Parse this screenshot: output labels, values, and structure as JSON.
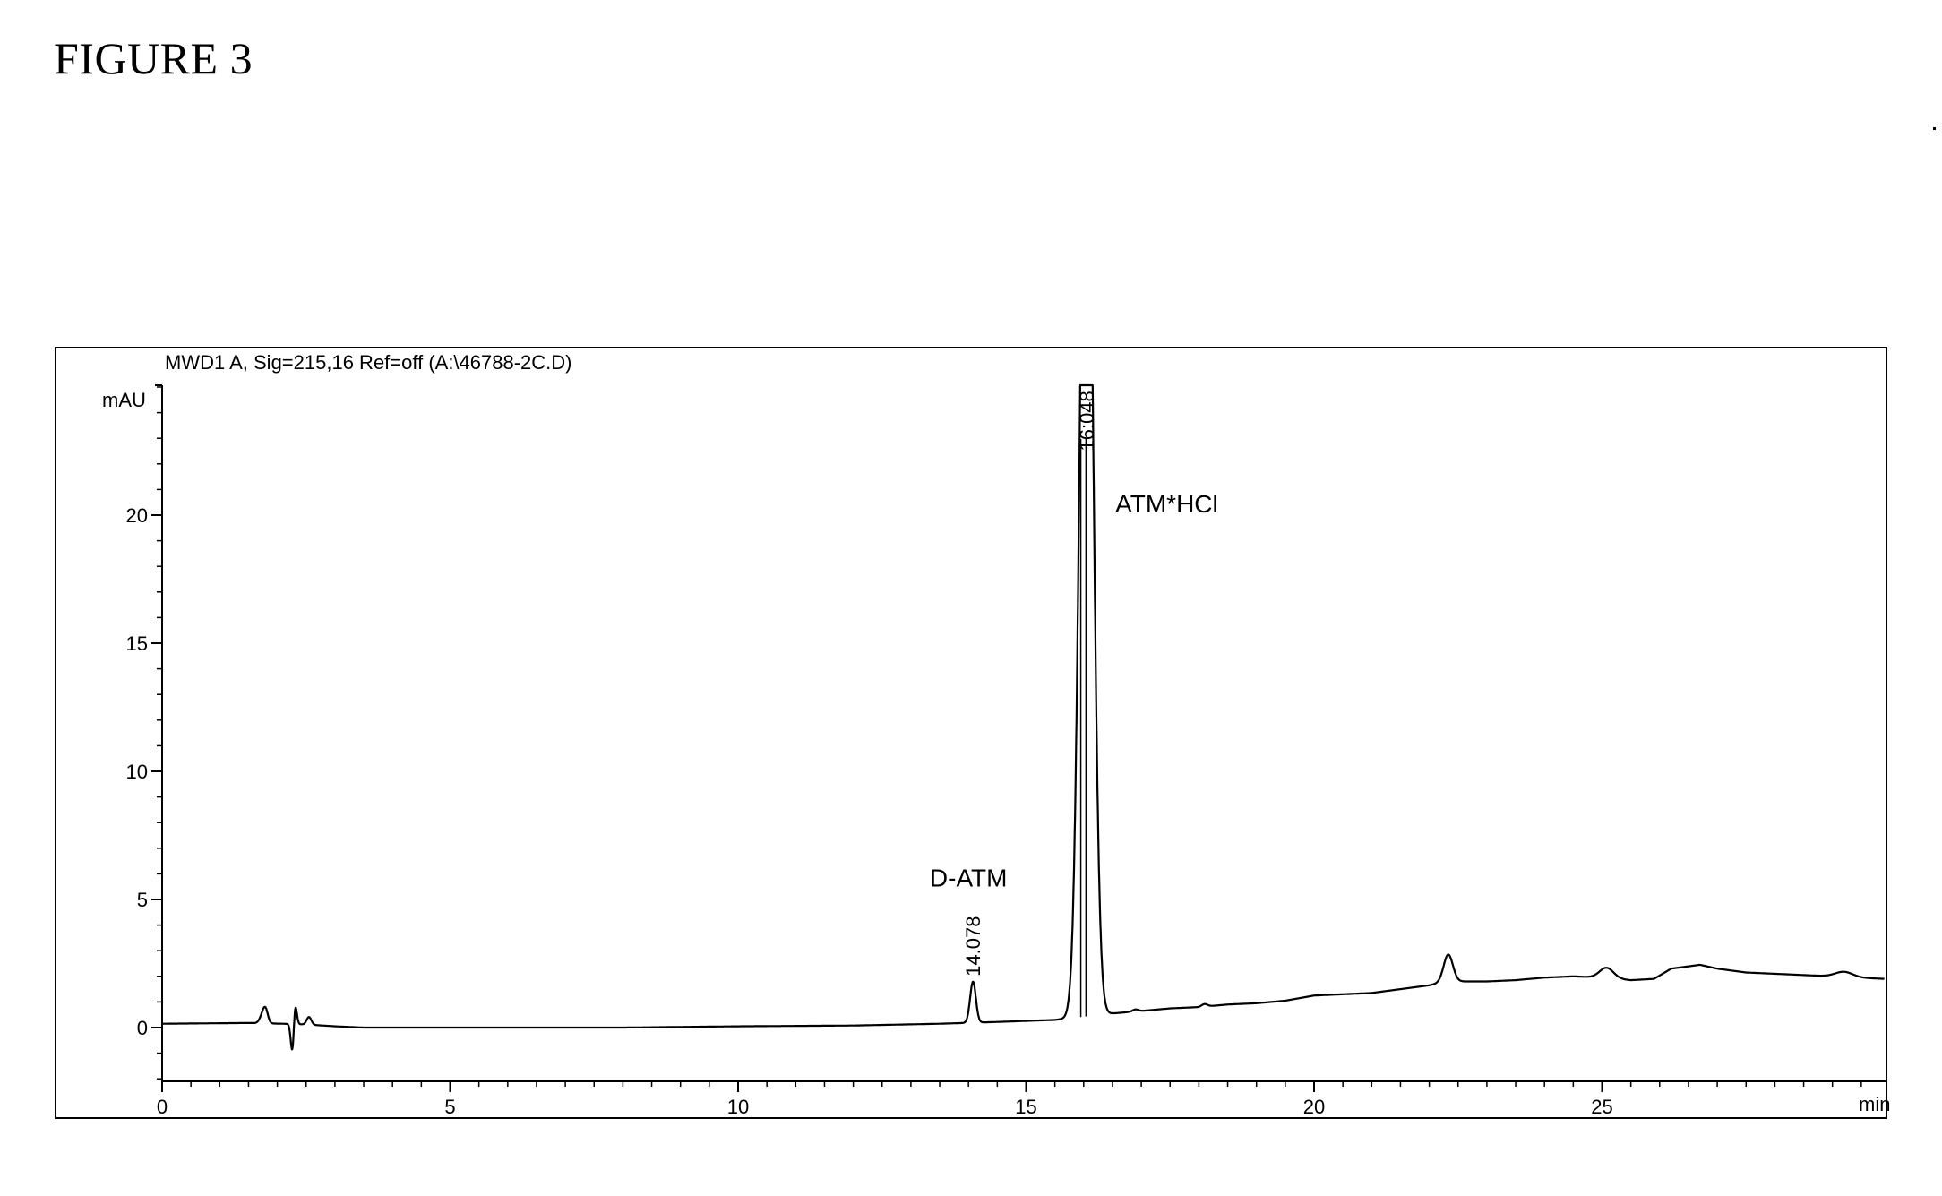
{
  "figure_label": "FIGURE 3",
  "chart_data": {
    "type": "line",
    "title": "MWD1 A, Sig=215,16 Ref=off (A:\\46788-2C.D)",
    "ylabel": "mAU",
    "xlabel": "min",
    "xlim": [
      0,
      29.9
    ],
    "ylim": [
      -2,
      25
    ],
    "x_ticks": [
      0,
      5,
      10,
      15,
      20,
      25
    ],
    "y_ticks": [
      0,
      5,
      10,
      15,
      20
    ],
    "x_minor_step": 0.5,
    "y_minor_step": 1,
    "grid": false,
    "line_color": "#000000",
    "baseline": [
      [
        0,
        0.15
      ],
      [
        1.5,
        0.18
      ],
      [
        2.1,
        0.15
      ],
      [
        2.5,
        0.12
      ],
      [
        3.0,
        0.05
      ],
      [
        3.5,
        0.0
      ],
      [
        5,
        0.0
      ],
      [
        8,
        0.0
      ],
      [
        10,
        0.05
      ],
      [
        12,
        0.08
      ],
      [
        13.5,
        0.15
      ],
      [
        14.5,
        0.22
      ],
      [
        15.5,
        0.3
      ],
      [
        15.9,
        0.4
      ],
      [
        16.5,
        0.55
      ],
      [
        17,
        0.65
      ],
      [
        17.5,
        0.75
      ],
      [
        18,
        0.8
      ],
      [
        18.5,
        0.9
      ],
      [
        19,
        0.95
      ],
      [
        19.5,
        1.05
      ],
      [
        20,
        1.25
      ],
      [
        20.5,
        1.3
      ],
      [
        21,
        1.35
      ],
      [
        21.5,
        1.5
      ],
      [
        22,
        1.65
      ],
      [
        22.3,
        1.8
      ],
      [
        22.5,
        1.8
      ],
      [
        23,
        1.8
      ],
      [
        23.5,
        1.85
      ],
      [
        24,
        1.95
      ],
      [
        24.5,
        2.0
      ],
      [
        25,
        1.95
      ],
      [
        25.5,
        1.85
      ],
      [
        25.9,
        1.9
      ],
      [
        26.2,
        2.3
      ],
      [
        26.7,
        2.45
      ],
      [
        27,
        2.3
      ],
      [
        27.5,
        2.15
      ],
      [
        28,
        2.1
      ],
      [
        28.5,
        2.05
      ],
      [
        29,
        2.0
      ],
      [
        29.9,
        1.9
      ]
    ],
    "peaks": [
      {
        "rt": 1.75,
        "height": 0.35,
        "width": 0.05
      },
      {
        "rt": 1.8,
        "height": 0.4,
        "width": 0.04
      },
      {
        "rt": 2.3,
        "height": 1.3,
        "width": 0.03
      },
      {
        "rt": 2.27,
        "height": -1.6,
        "width": 0.03
      },
      {
        "rt": 2.55,
        "height": 0.3,
        "width": 0.04
      },
      {
        "rt": 14.078,
        "height": 1.6,
        "width": 0.05
      },
      {
        "rt": 16.048,
        "height": 40,
        "width": 0.11
      },
      {
        "rt": 16.9,
        "height": 0.08,
        "width": 0.05
      },
      {
        "rt": 18.1,
        "height": 0.1,
        "width": 0.05
      },
      {
        "rt": 22.33,
        "height": 1.05,
        "width": 0.08
      },
      {
        "rt": 25.08,
        "height": 0.4,
        "width": 0.12
      },
      {
        "rt": 29.2,
        "height": 0.2,
        "width": 0.15
      }
    ],
    "peak_labels": [
      {
        "text": "14.078",
        "x": 14.078,
        "y": 2.0
      },
      {
        "text": "16:048",
        "x": 16.048,
        "y": 22.5
      }
    ],
    "peak_drop_lines": [
      15.95,
      16.04
    ],
    "annotations": [
      {
        "text": "D-ATM",
        "x": 14.0,
        "y": 5.5
      },
      {
        "text": "ATM*HCl",
        "x": 16.55,
        "y": 20.1
      }
    ]
  }
}
